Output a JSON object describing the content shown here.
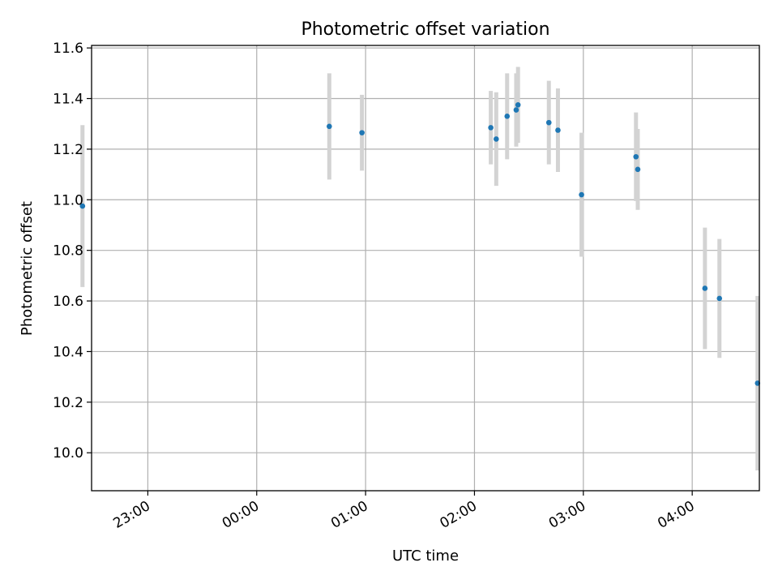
{
  "chart_data": {
    "type": "scatter",
    "title": "Photometric offset variation",
    "xlabel": "UTC time",
    "ylabel": "Photometric offset",
    "x_range": [
      "22:29",
      "04:37"
    ],
    "ylim": [
      9.85,
      11.61
    ],
    "x_ticks": [
      "23:00",
      "00:00",
      "01:00",
      "02:00",
      "03:00",
      "04:00"
    ],
    "y_ticks": [
      "10.0",
      "10.2",
      "10.4",
      "10.6",
      "10.8",
      "11.0",
      "11.2",
      "11.4",
      "11.6"
    ],
    "grid": true,
    "point_color": "#1f77b4",
    "errorbar_color": "#d3d3d3",
    "points": [
      {
        "time": "22:24",
        "y": 10.975,
        "err": 0.32
      },
      {
        "time": "00:40",
        "y": 11.29,
        "err": 0.21
      },
      {
        "time": "00:58",
        "y": 11.265,
        "err": 0.15
      },
      {
        "time": "02:09",
        "y": 11.285,
        "err": 0.145
      },
      {
        "time": "02:12",
        "y": 11.24,
        "err": 0.185
      },
      {
        "time": "02:18",
        "y": 11.33,
        "err": 0.17
      },
      {
        "time": "02:23",
        "y": 11.355,
        "err": 0.145
      },
      {
        "time": "02:24",
        "y": 11.375,
        "err": 0.15
      },
      {
        "time": "02:41",
        "y": 11.305,
        "err": 0.165
      },
      {
        "time": "02:46",
        "y": 11.275,
        "err": 0.165
      },
      {
        "time": "02:59",
        "y": 11.02,
        "err": 0.245
      },
      {
        "time": "03:29",
        "y": 11.17,
        "err": 0.175
      },
      {
        "time": "03:30",
        "y": 11.12,
        "err": 0.16
      },
      {
        "time": "04:07",
        "y": 10.65,
        "err": 0.24
      },
      {
        "time": "04:15",
        "y": 10.61,
        "err": 0.235
      },
      {
        "time": "04:36",
        "y": 10.275,
        "err": 0.345
      }
    ]
  }
}
